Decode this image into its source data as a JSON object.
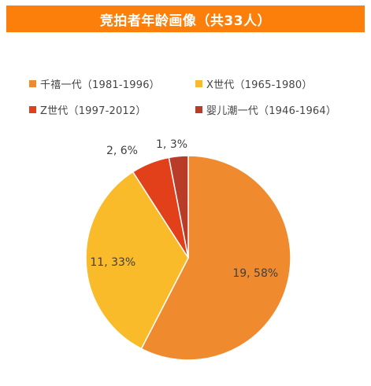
{
  "chart_data": {
    "type": "pie",
    "title": "竞拍者年龄画像（共33人）",
    "categories": [
      "千禧一代（1981-1996）",
      "X世代（1965-1980）",
      "Z世代（1997-2012）",
      "婴儿潮一代（1946-1964）"
    ],
    "values": [
      19,
      11,
      2,
      1
    ],
    "data_labels": [
      "19, 58%",
      "11, 33%",
      "2, 6%",
      "1, 3%"
    ],
    "colors": [
      "#ef8a2e",
      "#f9bb29",
      "#e1401b",
      "#b93c28"
    ],
    "start_angle_deg": 0,
    "direction": "clockwise",
    "legend_position": "top",
    "header_color": "#fb7f0a"
  }
}
